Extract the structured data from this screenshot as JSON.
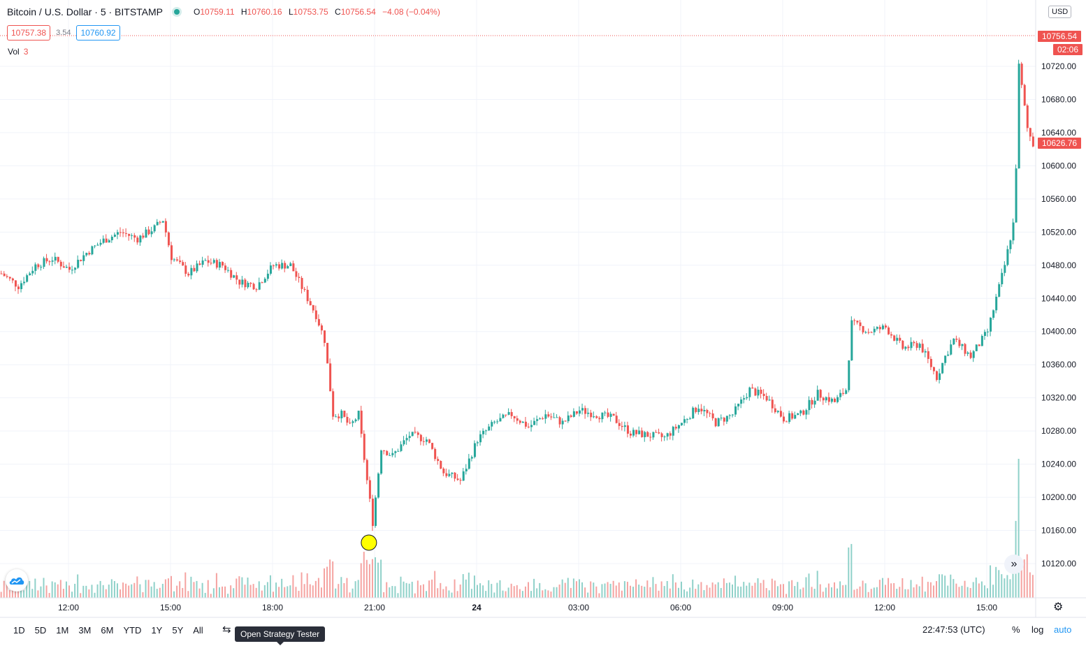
{
  "header": {
    "title": "Bitcoin / U.S. Dollar · 5 · BITSTAMP",
    "open_label": "O",
    "open": "10759.11",
    "high_label": "H",
    "high": "10760.16",
    "low_label": "L",
    "low": "10753.75",
    "close_label": "C",
    "close": "10756.54",
    "change": "−4.08 (−0.04%)"
  },
  "quote": {
    "sell": "10757.38",
    "spread": "3.54",
    "buy": "10760.92"
  },
  "volume_legend": {
    "label": "Vol",
    "value": "3"
  },
  "currency_button": "USD",
  "price_tags": {
    "last": "10756.54",
    "countdown": "02:06",
    "marker": "10626.76"
  },
  "bottom": {
    "ranges": [
      "1D",
      "5D",
      "1M",
      "3M",
      "6M",
      "YTD",
      "1Y",
      "5Y",
      "All"
    ],
    "tooltip": "Open Strategy Tester",
    "time": "22:47:53 (UTC)",
    "percent": "%",
    "log": "log",
    "auto": "auto"
  },
  "colors": {
    "up": "#26a69a",
    "down": "#ef5350",
    "vol_up": "#8fd1c9",
    "vol_down": "#f5a3a1",
    "grid": "#f0f3fa",
    "marker": "#ffff00"
  },
  "icons": {
    "logo": "tradingview-cloud-icon",
    "scroll": "double-chevron-right-icon",
    "settings": "gear-icon",
    "strategy": "strategy-tester-icon"
  },
  "chart_data": {
    "type": "candlestick",
    "title": "Bitcoin / U.S. Dollar",
    "interval": "5",
    "exchange": "BITSTAMP",
    "x_ticks": [
      "12:00",
      "15:00",
      "18:00",
      "21:00",
      "24",
      "03:00",
      "06:00",
      "09:00",
      "12:00",
      "15:00"
    ],
    "y_ticks": [
      10120,
      10160,
      10200,
      10240,
      10280,
      10320,
      10360,
      10400,
      10440,
      10480,
      10520,
      10560,
      10600,
      10640,
      10680,
      10720
    ],
    "ylim": [
      10080,
      10770
    ],
    "marker_time": "20:50",
    "close_path": [
      [
        "10:00",
        10470
      ],
      [
        "10:30",
        10455
      ],
      [
        "11:00",
        10480
      ],
      [
        "11:30",
        10488
      ],
      [
        "12:00",
        10475
      ],
      [
        "12:30",
        10495
      ],
      [
        "13:00",
        10510
      ],
      [
        "13:30",
        10520
      ],
      [
        "14:00",
        10512
      ],
      [
        "14:30",
        10525
      ],
      [
        "14:45",
        10535
      ],
      [
        "15:00",
        10490
      ],
      [
        "15:30",
        10470
      ],
      [
        "16:00",
        10485
      ],
      [
        "16:30",
        10480
      ],
      [
        "17:00",
        10460
      ],
      [
        "17:30",
        10455
      ],
      [
        "18:00",
        10480
      ],
      [
        "18:30",
        10480
      ],
      [
        "18:45",
        10460
      ],
      [
        "19:00",
        10440
      ],
      [
        "19:15",
        10420
      ],
      [
        "19:30",
        10390
      ],
      [
        "19:45",
        10300
      ],
      [
        "20:00",
        10300
      ],
      [
        "20:15",
        10285
      ],
      [
        "20:30",
        10300
      ],
      [
        "20:45",
        10220
      ],
      [
        "20:55",
        10170
      ],
      [
        "21:10",
        10260
      ],
      [
        "21:30",
        10250
      ],
      [
        "22:00",
        10275
      ],
      [
        "22:30",
        10270
      ],
      [
        "23:00",
        10230
      ],
      [
        "23:30",
        10220
      ],
      [
        "00:00",
        10270
      ],
      [
        "00:30",
        10290
      ],
      [
        "01:00",
        10300
      ],
      [
        "01:30",
        10285
      ],
      [
        "02:00",
        10300
      ],
      [
        "02:30",
        10290
      ],
      [
        "03:00",
        10305
      ],
      [
        "03:30",
        10300
      ],
      [
        "04:00",
        10295
      ],
      [
        "04:30",
        10278
      ],
      [
        "05:00",
        10275
      ],
      [
        "05:30",
        10272
      ],
      [
        "06:00",
        10290
      ],
      [
        "06:30",
        10310
      ],
      [
        "07:00",
        10290
      ],
      [
        "07:30",
        10300
      ],
      [
        "08:00",
        10330
      ],
      [
        "08:30",
        10320
      ],
      [
        "09:00",
        10295
      ],
      [
        "09:30",
        10300
      ],
      [
        "10:00",
        10325
      ],
      [
        "10:30",
        10315
      ],
      [
        "10:50",
        10330
      ],
      [
        "11:00",
        10410
      ],
      [
        "11:30",
        10400
      ],
      [
        "12:00",
        10405
      ],
      [
        "12:30",
        10380
      ],
      [
        "13:00",
        10385
      ],
      [
        "13:30",
        10345
      ],
      [
        "13:45",
        10370
      ],
      [
        "14:00",
        10390
      ],
      [
        "14:30",
        10370
      ],
      [
        "15:00",
        10400
      ],
      [
        "15:15",
        10440
      ],
      [
        "15:30",
        10480
      ],
      [
        "15:45",
        10530
      ],
      [
        "15:50",
        10600
      ],
      [
        "15:55",
        10720
      ],
      [
        "16:10",
        10645
      ],
      [
        "16:20",
        10626
      ]
    ],
    "volume_max": 220
  }
}
